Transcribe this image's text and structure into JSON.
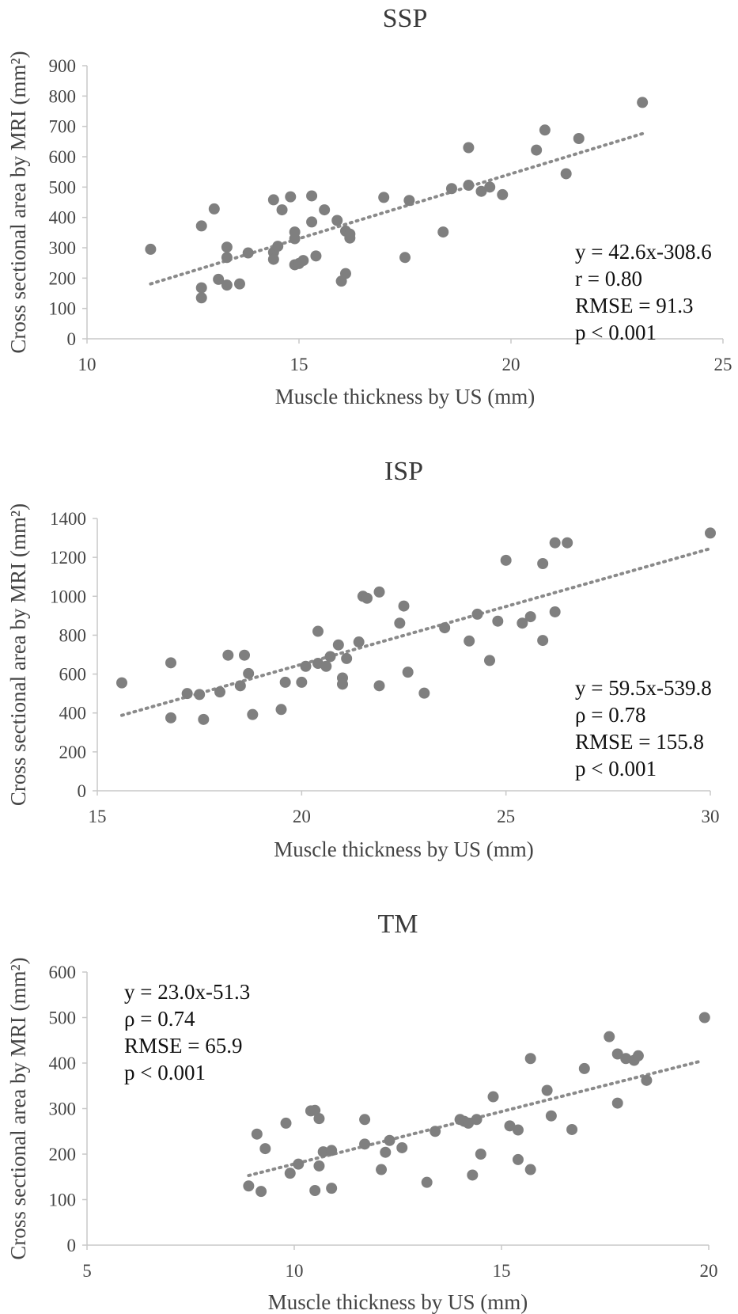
{
  "chart_data": [
    {
      "type": "scatter",
      "title": "SSP",
      "xlabel": "Muscle thickness by US (mm)",
      "ylabel": "Cross sectional area by MRI (mm²)",
      "xlim": [
        10,
        25
      ],
      "ylim": [
        0,
        900
      ],
      "xticks": [
        10,
        15,
        20,
        25
      ],
      "yticks": [
        0,
        100,
        200,
        300,
        400,
        500,
        600,
        700,
        800,
        900
      ],
      "trendline": {
        "x": [
          11.5,
          23.1
        ],
        "y": [
          181,
          676
        ],
        "style": "dotted"
      },
      "annotation": [
        "y = 42.6x-308.6",
        "r = 0.80",
        "RMSE = 91.3",
        "p < 0.001"
      ],
      "annotation_position": "bottom-right",
      "points": [
        [
          11.5,
          295
        ],
        [
          12.7,
          372
        ],
        [
          12.7,
          168
        ],
        [
          12.7,
          135
        ],
        [
          13.0,
          428
        ],
        [
          13.1,
          196
        ],
        [
          13.3,
          302
        ],
        [
          13.3,
          268
        ],
        [
          13.3,
          177
        ],
        [
          13.6,
          181
        ],
        [
          13.8,
          283
        ],
        [
          14.4,
          458
        ],
        [
          14.4,
          285
        ],
        [
          14.4,
          262
        ],
        [
          14.5,
          305
        ],
        [
          14.6,
          425
        ],
        [
          14.8,
          468
        ],
        [
          14.9,
          244
        ],
        [
          14.9,
          330
        ],
        [
          14.9,
          352
        ],
        [
          15.0,
          248
        ],
        [
          15.1,
          258
        ],
        [
          15.3,
          471
        ],
        [
          15.3,
          385
        ],
        [
          15.4,
          273
        ],
        [
          15.6,
          425
        ],
        [
          15.9,
          390
        ],
        [
          16.0,
          190
        ],
        [
          16.1,
          215
        ],
        [
          16.1,
          355
        ],
        [
          16.2,
          332
        ],
        [
          16.2,
          345
        ],
        [
          17.0,
          466
        ],
        [
          17.5,
          268
        ],
        [
          17.6,
          456
        ],
        [
          18.4,
          352
        ],
        [
          18.6,
          495
        ],
        [
          19.0,
          506
        ],
        [
          19.0,
          630
        ],
        [
          19.3,
          486
        ],
        [
          19.5,
          500
        ],
        [
          19.8,
          475
        ],
        [
          20.6,
          622
        ],
        [
          20.8,
          688
        ],
        [
          21.3,
          544
        ],
        [
          21.6,
          660
        ],
        [
          23.1,
          779
        ]
      ]
    },
    {
      "type": "scatter",
      "title": "ISP",
      "xlabel": "Muscle thickness by US (mm)",
      "ylabel": "Cross sectional area by MRI (mm²)",
      "xlim": [
        15,
        30
      ],
      "ylim": [
        0,
        1400
      ],
      "xticks": [
        15,
        20,
        25,
        30
      ],
      "yticks": [
        0,
        200,
        400,
        600,
        800,
        1000,
        1200,
        1400
      ],
      "trendline": {
        "x": [
          15.6,
          30.0
        ],
        "y": [
          388,
          1245
        ],
        "style": "dotted"
      },
      "annotation": [
        "y = 59.5x-539.8",
        "ρ = 0.78",
        "RMSE = 155.8",
        "p < 0.001"
      ],
      "annotation_position": "bottom-right",
      "points": [
        [
          15.6,
          555
        ],
        [
          16.8,
          658
        ],
        [
          16.8,
          375
        ],
        [
          17.2,
          500
        ],
        [
          17.5,
          495
        ],
        [
          17.6,
          367
        ],
        [
          18.0,
          508
        ],
        [
          18.2,
          697
        ],
        [
          18.5,
          540
        ],
        [
          18.6,
          697
        ],
        [
          18.7,
          603
        ],
        [
          18.8,
          392
        ],
        [
          19.5,
          418
        ],
        [
          19.6,
          558
        ],
        [
          20.0,
          558
        ],
        [
          20.1,
          640
        ],
        [
          20.4,
          655
        ],
        [
          20.4,
          820
        ],
        [
          20.6,
          640
        ],
        [
          20.7,
          690
        ],
        [
          20.9,
          750
        ],
        [
          21.0,
          580
        ],
        [
          21.0,
          548
        ],
        [
          21.1,
          680
        ],
        [
          21.4,
          765
        ],
        [
          21.5,
          1000
        ],
        [
          21.6,
          990
        ],
        [
          21.9,
          1022
        ],
        [
          21.9,
          540
        ],
        [
          22.4,
          862
        ],
        [
          22.5,
          950
        ],
        [
          22.6,
          610
        ],
        [
          23.0,
          502
        ],
        [
          23.5,
          838
        ],
        [
          24.1,
          770
        ],
        [
          24.3,
          908
        ],
        [
          24.6,
          670
        ],
        [
          24.8,
          872
        ],
        [
          25.0,
          1185
        ],
        [
          25.4,
          862
        ],
        [
          25.6,
          895
        ],
        [
          25.9,
          773
        ],
        [
          25.9,
          1168
        ],
        [
          26.2,
          920
        ],
        [
          26.2,
          1275
        ],
        [
          26.5,
          1275
        ],
        [
          30.0,
          1325
        ]
      ]
    },
    {
      "type": "scatter",
      "title": "TM",
      "xlabel": "Muscle thickness by US (mm)",
      "ylabel": "Cross sectional area by MRI (mm²)",
      "xlim": [
        5,
        20
      ],
      "ylim": [
        0,
        600
      ],
      "xticks": [
        5,
        10,
        15,
        20
      ],
      "yticks": [
        0,
        100,
        200,
        300,
        400,
        500,
        600
      ],
      "trendline": {
        "x": [
          8.9,
          19.8
        ],
        "y": [
          153,
          404
        ],
        "style": "dotted"
      },
      "annotation": [
        "y = 23.0x-51.3",
        "ρ = 0.74",
        "RMSE = 65.9",
        "p < 0.001"
      ],
      "annotation_position": "top-left",
      "points": [
        [
          8.9,
          130
        ],
        [
          9.1,
          244
        ],
        [
          9.2,
          118
        ],
        [
          9.3,
          212
        ],
        [
          9.8,
          268
        ],
        [
          9.9,
          158
        ],
        [
          10.1,
          178
        ],
        [
          10.4,
          295
        ],
        [
          10.5,
          120
        ],
        [
          10.5,
          296
        ],
        [
          10.6,
          278
        ],
        [
          10.6,
          174
        ],
        [
          10.7,
          205
        ],
        [
          10.9,
          208
        ],
        [
          10.9,
          125
        ],
        [
          11.7,
          276
        ],
        [
          11.7,
          222
        ],
        [
          12.1,
          166
        ],
        [
          12.2,
          204
        ],
        [
          12.3,
          230
        ],
        [
          12.6,
          214
        ],
        [
          13.2,
          138
        ],
        [
          13.4,
          250
        ],
        [
          14.0,
          276
        ],
        [
          14.1,
          272
        ],
        [
          14.2,
          268
        ],
        [
          14.3,
          154
        ],
        [
          14.4,
          276
        ],
        [
          14.5,
          200
        ],
        [
          14.8,
          326
        ],
        [
          15.2,
          262
        ],
        [
          15.4,
          253
        ],
        [
          15.4,
          188
        ],
        [
          15.7,
          166
        ],
        [
          15.7,
          410
        ],
        [
          16.1,
          340
        ],
        [
          16.2,
          284
        ],
        [
          16.7,
          254
        ],
        [
          17.0,
          388
        ],
        [
          17.6,
          458
        ],
        [
          17.8,
          420
        ],
        [
          17.8,
          312
        ],
        [
          18.0,
          410
        ],
        [
          18.2,
          406
        ],
        [
          18.3,
          416
        ],
        [
          18.5,
          362
        ],
        [
          19.9,
          500
        ]
      ]
    }
  ]
}
